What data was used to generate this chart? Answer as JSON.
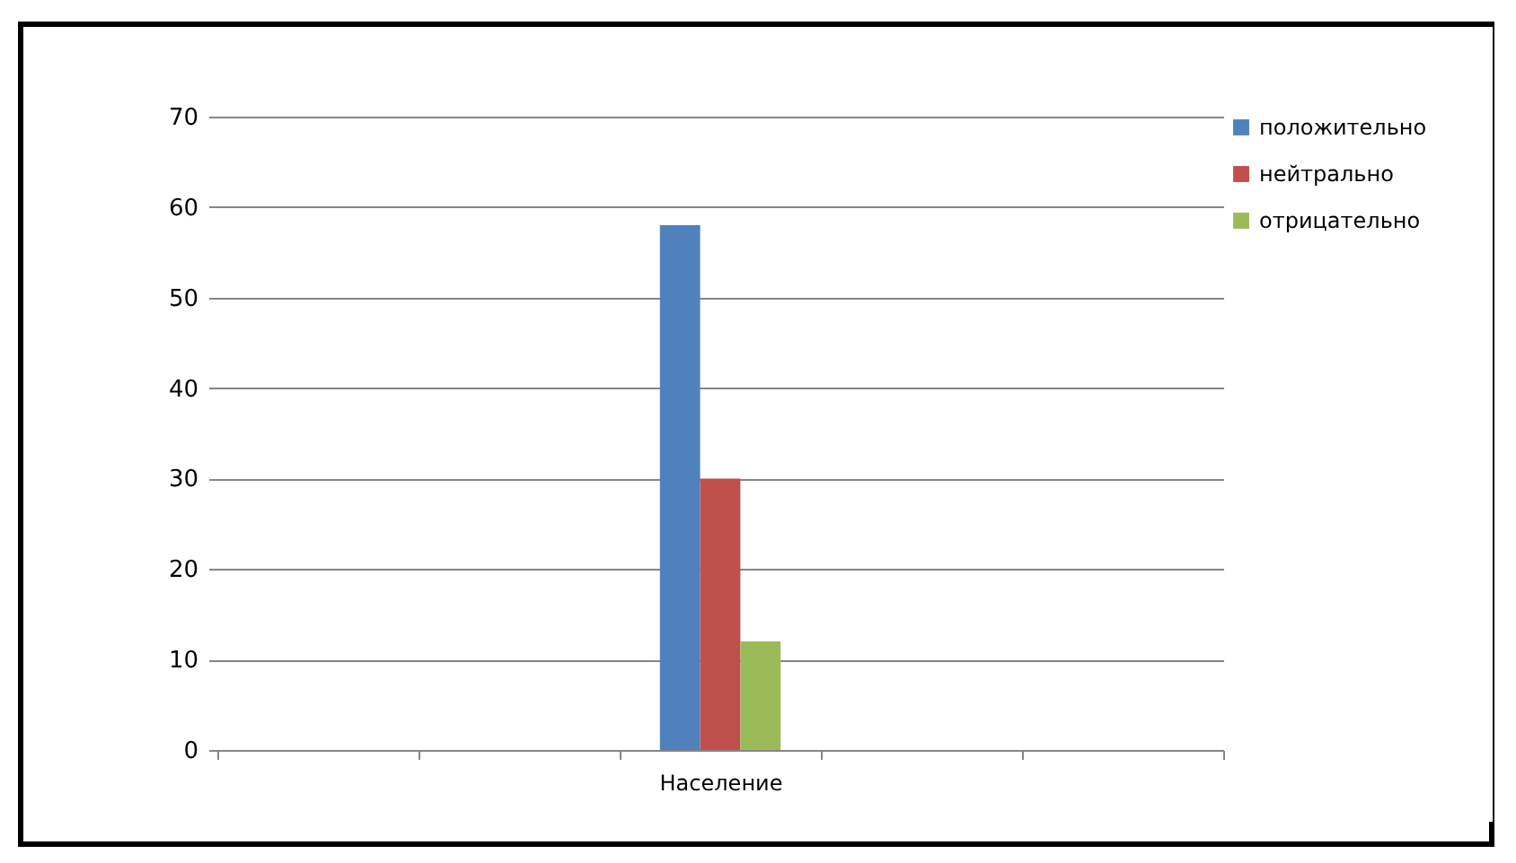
{
  "chart_data": {
    "type": "bar",
    "categories": [
      null,
      null,
      "Население",
      null,
      null
    ],
    "series": [
      {
        "name": "положительно",
        "color": "#4f81bd",
        "values": [
          null,
          null,
          58,
          null,
          null
        ]
      },
      {
        "name": "нейтрально",
        "color": "#c0504d",
        "values": [
          null,
          null,
          30,
          null,
          null
        ]
      },
      {
        "name": "отрицательно",
        "color": "#9bbb59",
        "values": [
          null,
          null,
          12,
          null,
          null
        ]
      }
    ],
    "ylim": [
      0,
      70
    ],
    "yticks": [
      0,
      10,
      20,
      30,
      40,
      50,
      60,
      70
    ],
    "grid": "y",
    "legend": "right"
  }
}
